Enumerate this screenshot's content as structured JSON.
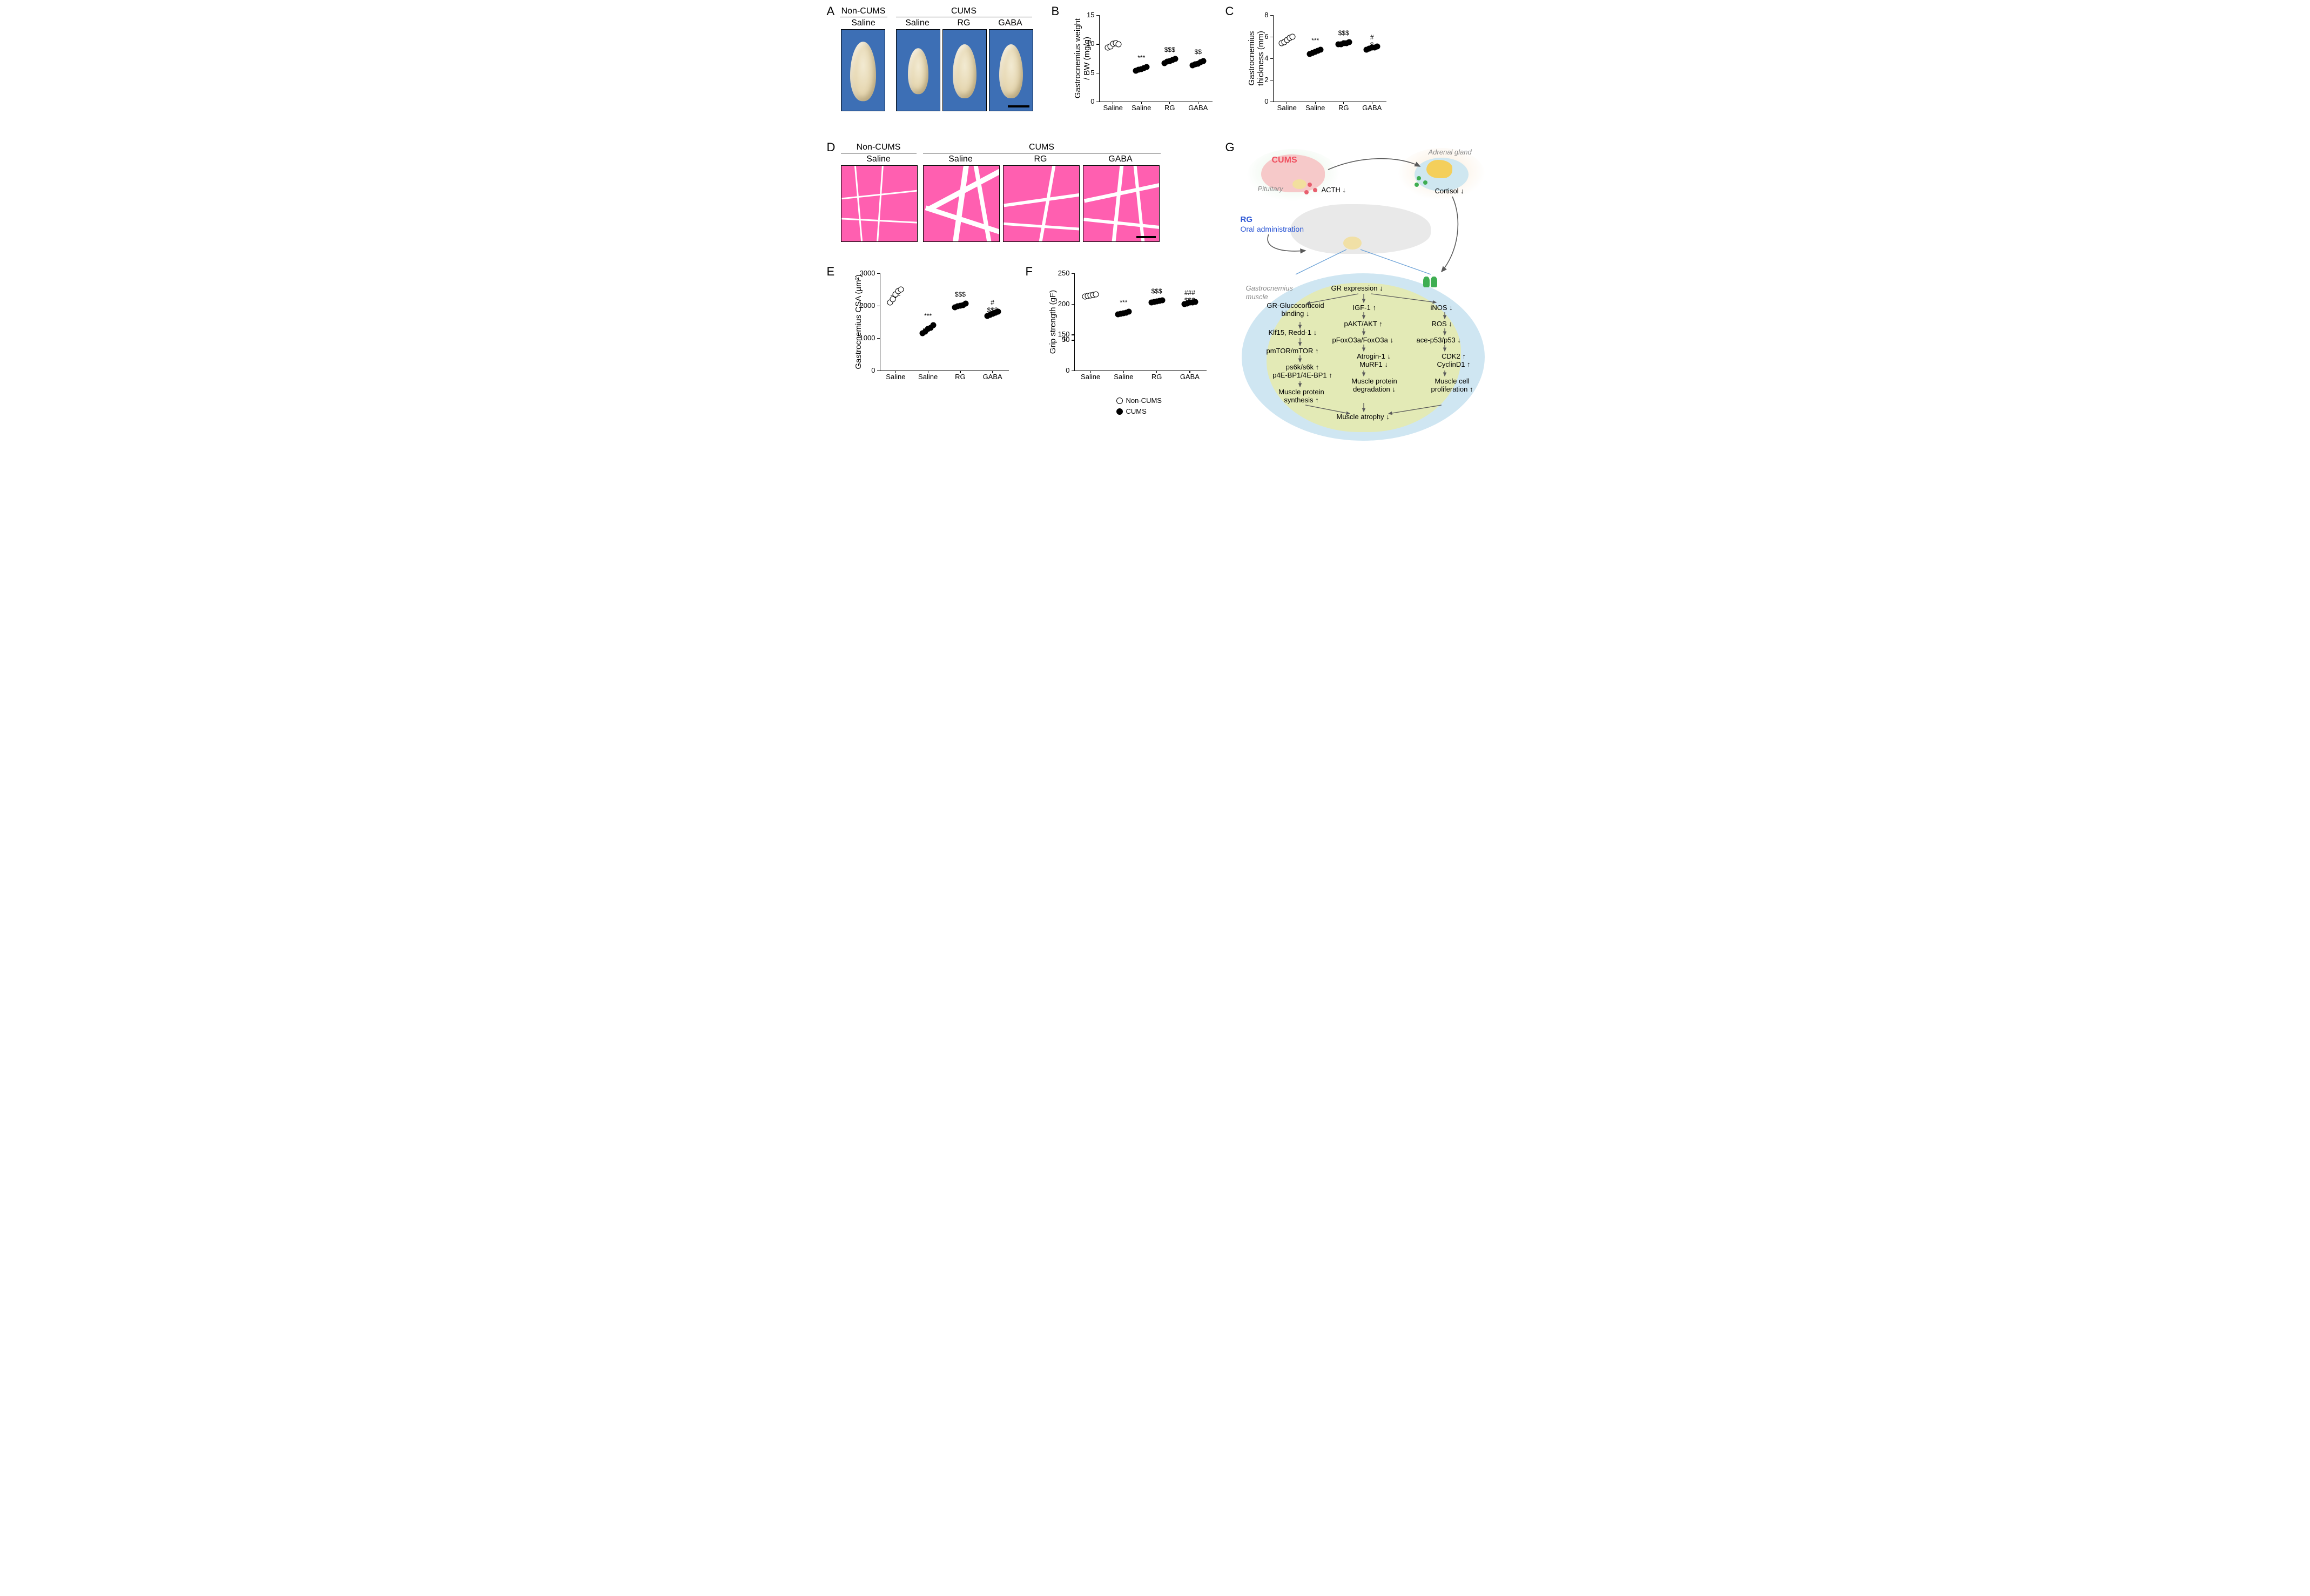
{
  "labels": {
    "A": "A",
    "B": "B",
    "C": "C",
    "D": "D",
    "E": "E",
    "F": "F",
    "G": "G"
  },
  "groups": {
    "nonCUMS": "Non-CUMS",
    "CUMS": "CUMS",
    "cats": [
      "Saline",
      "Saline",
      "RG",
      "GABA"
    ]
  },
  "legend": {
    "open": "Non-CUMS",
    "filled": "CUMS"
  },
  "panelA": {
    "scalebar_mm": 10
  },
  "chartB": {
    "type": "scatter-strip",
    "ylabel": "Gastrocnemius weight\n/ BW (mg/g)",
    "ylim": [
      0,
      15
    ],
    "yticks": [
      0,
      5,
      10,
      15
    ],
    "ytick_labels": [
      "0",
      "5",
      "10",
      "15"
    ],
    "categories": [
      "Saline",
      "Saline",
      "RG",
      "GABA"
    ],
    "series_fill": [
      "open",
      "filled",
      "filled",
      "filled"
    ],
    "points": [
      [
        9.4,
        9.6,
        10.0,
        10.1,
        9.9
      ],
      [
        5.3,
        5.5,
        5.6,
        5.8,
        6.0
      ],
      [
        6.7,
        6.9,
        7.0,
        7.2,
        7.4
      ],
      [
        6.3,
        6.5,
        6.6,
        6.8,
        7.0
      ]
    ],
    "mean": [
      9.8,
      5.6,
      7.0,
      6.6
    ],
    "sem": [
      0.15,
      0.12,
      0.12,
      0.12
    ],
    "sig": [
      "",
      "***",
      "$$$",
      "$$"
    ]
  },
  "chartC": {
    "type": "scatter-strip",
    "ylabel": "Gastrocnemius thickness (mm)",
    "ylim": [
      0,
      8
    ],
    "yticks": [
      0,
      2,
      4,
      6,
      8
    ],
    "ytick_labels": [
      "0",
      "2",
      "4",
      "6",
      "8"
    ],
    "categories": [
      "Saline",
      "Saline",
      "RG",
      "GABA"
    ],
    "series_fill": [
      "open",
      "filled",
      "filled",
      "filled"
    ],
    "points": [
      [
        5.4,
        5.5,
        5.7,
        5.9,
        6.0
      ],
      [
        4.4,
        4.5,
        4.6,
        4.7,
        4.8
      ],
      [
        5.3,
        5.3,
        5.4,
        5.4,
        5.5
      ],
      [
        4.8,
        4.9,
        5.0,
        5.0,
        5.1
      ]
    ],
    "mean": [
      5.7,
      4.6,
      5.4,
      5.0
    ],
    "sem": [
      0.12,
      0.08,
      0.05,
      0.06
    ],
    "sig": [
      "",
      "***",
      "$$$",
      "#\n$"
    ]
  },
  "panelD": {
    "scalebar_um": 100
  },
  "chartE": {
    "type": "scatter-strip",
    "ylabel": "Gastrocnemius CSA (µm²)",
    "ylim": [
      0,
      3000
    ],
    "yticks": [
      0,
      1000,
      2000,
      3000
    ],
    "ytick_labels": [
      "0",
      "1000",
      "2000",
      "3000"
    ],
    "categories": [
      "Saline",
      "Saline",
      "RG",
      "GABA"
    ],
    "series_fill": [
      "open",
      "filled",
      "filled",
      "filled"
    ],
    "points": [
      [
        2100,
        2200,
        2350,
        2450,
        2500
      ],
      [
        1150,
        1200,
        1280,
        1320,
        1400
      ],
      [
        1950,
        1980,
        2000,
        2020,
        2060
      ],
      [
        1680,
        1720,
        1750,
        1780,
        1820
      ]
    ],
    "mean": [
      2320,
      1280,
      2000,
      1750
    ],
    "sem": [
      80,
      45,
      22,
      28
    ],
    "sig": [
      "",
      "***",
      "$$$",
      "#\n$$$"
    ]
  },
  "chartF": {
    "type": "scatter-strip",
    "ylabel": "Grip strength (gF)",
    "ylim": [
      0,
      250
    ],
    "yticks": [
      0,
      50,
      150,
      200,
      250
    ],
    "ytick_labels": [
      "0",
      "50",
      "150",
      "200",
      "250"
    ],
    "axis_break": {
      "between": [
        50,
        150
      ]
    },
    "categories": [
      "Saline",
      "Saline",
      "RG",
      "GABA"
    ],
    "series_fill": [
      "open",
      "filled",
      "filled",
      "filled"
    ],
    "points": [
      [
        212,
        213,
        214,
        215,
        216
      ],
      [
        183,
        184,
        185,
        186,
        187
      ],
      [
        202,
        203,
        204,
        205,
        206
      ],
      [
        200,
        201,
        202,
        202,
        203
      ]
    ],
    "mean": [
      214,
      185,
      204,
      202
    ],
    "sem": [
      1.0,
      0.8,
      0.8,
      0.7
    ],
    "sig": [
      "",
      "***",
      "$$$",
      "###\n$$$"
    ]
  },
  "schematicG": {
    "title_cums": "CUMS",
    "title_rg": "RG\nOral administration",
    "pituitary": "Pituitary",
    "acth": "ACTH ↓",
    "adrenal": "Adrenal gland",
    "cortisol": "Cortisol ↓",
    "muscle_label": "Gastrocnemius\nmuscle",
    "gr": "GR expression ↓",
    "left_col": [
      "GR-Glucocorticoid\nbinding ↓",
      "Klf15, Redd-1 ↓",
      "pmTOR/mTOR ↑",
      "ps6k/s6k ↑\np4E-BP1/4E-BP1 ↑",
      "Muscle protein\nsynthesis ↑"
    ],
    "mid_col": [
      "IGF-1 ↑",
      "pAKT/AKT ↑",
      "pFoxO3a/FoxO3a ↓",
      "Atrogin-1 ↓\nMuRF1 ↓",
      "Muscle protein\ndegradation ↓"
    ],
    "right_col": [
      "iNOS ↓",
      "ROS ↓",
      "ace-p53/p53 ↓",
      "CDK2 ↑\nCyclinD1 ↑",
      "Muscle cell\nproliferation ↑"
    ],
    "bottom": "Muscle atrophy ↓",
    "colors": {
      "cums": "#ef4e5e",
      "rg": "#2a55d4",
      "brain": "#f6c9c9",
      "pituitary": "#f2df9e",
      "adrenal_cortex": "#cfe7f0",
      "adrenal_medulla": "#f4cf5b",
      "cortisol_dot": "#3fae52",
      "acth_dot": "#e85f6e",
      "muscle_bg": "#dce7a0",
      "cell_bg": "#cfe6f2",
      "mouse": "#d6d6d6"
    }
  },
  "style": {
    "axis_color": "#000",
    "open_marker_border": "#000",
    "filled_marker": "#000",
    "plot_bg": "#ffffff",
    "font_family": "Helvetica"
  }
}
